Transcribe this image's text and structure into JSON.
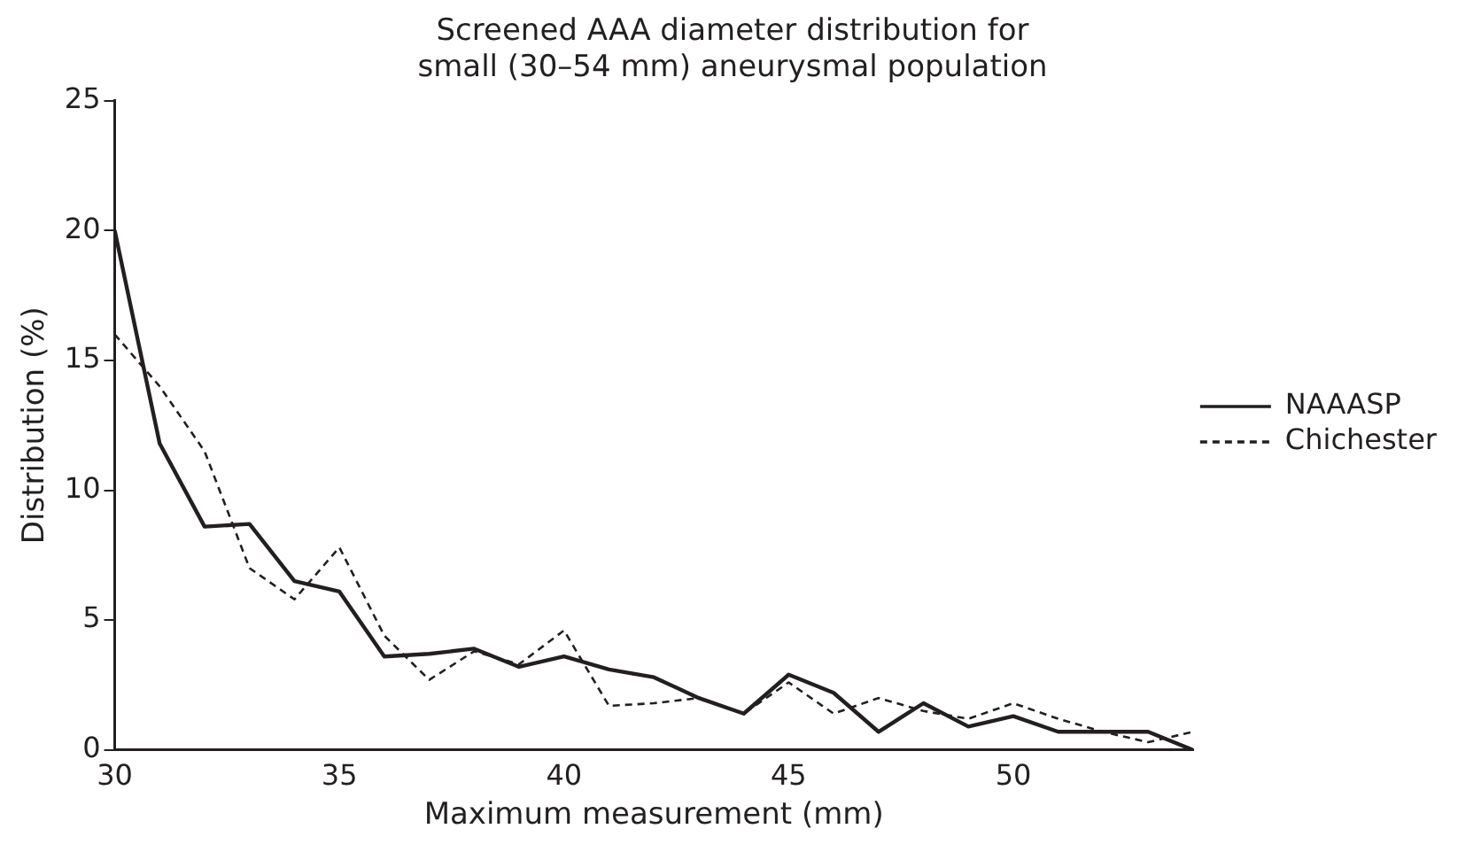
{
  "chart_data": {
    "type": "line",
    "title": [
      "Screened AAA diameter distribution for",
      "small (30–54 mm) aneurysmal population"
    ],
    "xlabel": "Maximum measurement (mm)",
    "ylabel": "Distribution (%)",
    "x": [
      30,
      31,
      32,
      33,
      34,
      35,
      36,
      37,
      38,
      39,
      40,
      41,
      42,
      43,
      44,
      45,
      46,
      47,
      48,
      49,
      50,
      51,
      52,
      53,
      54
    ],
    "series": [
      {
        "name": "NAAASP",
        "color": "#231f20",
        "line_style": "solid",
        "values": [
          20,
          11.8,
          8.6,
          8.7,
          6.5,
          6.1,
          3.6,
          3.7,
          3.9,
          3.2,
          3.6,
          3.1,
          2.8,
          2.0,
          1.4,
          2.9,
          2.2,
          0.7,
          1.8,
          0.9,
          1.3,
          0.7,
          0.7,
          0.7,
          0
        ]
      },
      {
        "name": "Chichester",
        "color": "#231f20",
        "line_style": "dashed",
        "values": [
          16,
          14,
          11.5,
          7,
          5.8,
          7.8,
          4.4,
          2.7,
          3.8,
          3.3,
          4.6,
          1.7,
          1.8,
          2.0,
          1.4,
          2.6,
          1.4,
          2.0,
          1.5,
          1.2,
          1.8,
          1.2,
          0.7,
          0.3,
          0.7
        ]
      }
    ],
    "xlim": [
      30,
      54
    ],
    "xticks": [
      30,
      35,
      40,
      45,
      50
    ],
    "ylim": [
      0,
      25
    ],
    "yticks": [
      0,
      5,
      10,
      15,
      20,
      25
    ],
    "grid": false,
    "legend": "right",
    "marker": "none"
  }
}
